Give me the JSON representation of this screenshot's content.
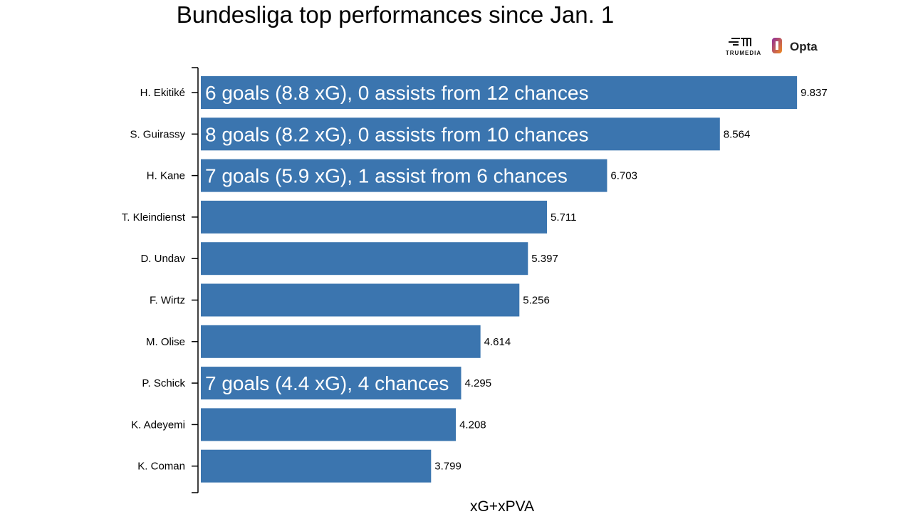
{
  "chart_data": {
    "type": "bar",
    "orientation": "horizontal",
    "title": "Bundesliga top performances since Jan. 1",
    "xlabel": "xG+xPVA",
    "ylabel": "",
    "xlim": [
      0,
      10
    ],
    "grid": false,
    "bar_color": "#3b75af",
    "categories": [
      "H. Ekitiké",
      "S. Guirassy",
      "H. Kane",
      "T. Kleindienst",
      "D. Undav",
      "F. Wirtz",
      "M. Olise",
      "P. Schick",
      "K. Adeyemi",
      "K. Coman"
    ],
    "values": [
      9.837,
      8.564,
      6.703,
      5.711,
      5.397,
      5.256,
      4.614,
      4.295,
      4.208,
      3.799
    ],
    "value_labels": [
      "9.837",
      "8.564",
      "6.703",
      "5.711",
      "5.397",
      "5.256",
      "4.614",
      "4.295",
      "4.208",
      "3.799"
    ],
    "annotations": [
      "6 goals (8.8 xG), 0 assists from 12 chances",
      "8 goals (8.2 xG), 0 assists from 10 chances",
      "7 goals (5.9 xG), 1 assist from 6 chances",
      "",
      "",
      "",
      "",
      "7 goals (4.4 xG), 4 chances",
      "",
      ""
    ]
  },
  "logos": {
    "trumedia": "TRUMEDIA",
    "opta": "Opta"
  }
}
